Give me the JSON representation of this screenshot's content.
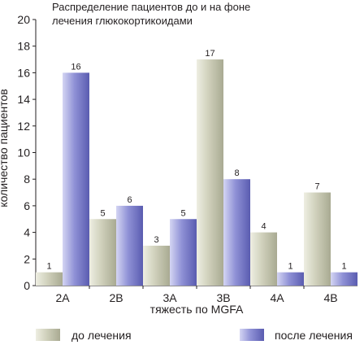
{
  "chart_data": {
    "type": "bar",
    "title": "Распределение пациентов до и на фоне лечения глюкокортикоидами",
    "title_lines": [
      "Распределение пациентов до и на фоне",
      "лечения глюкокортикоидами"
    ],
    "xlabel": "тяжесть по MGFA",
    "ylabel": "количество пациентов",
    "categories": [
      "2A",
      "2B",
      "3A",
      "3B",
      "4A",
      "4B"
    ],
    "series": [
      {
        "name": "до лечения",
        "values": [
          1,
          5,
          3,
          17,
          4,
          7
        ],
        "color": "#cccdb8"
      },
      {
        "name": "после лечения",
        "values": [
          16,
          6,
          5,
          8,
          1,
          1
        ],
        "color": "#8f91d6"
      }
    ],
    "yticks": [
      0,
      2,
      4,
      6,
      8,
      10,
      12,
      14,
      16,
      18,
      20
    ],
    "ylim": [
      0,
      20
    ],
    "grid": false,
    "legend_position": "bottom"
  }
}
